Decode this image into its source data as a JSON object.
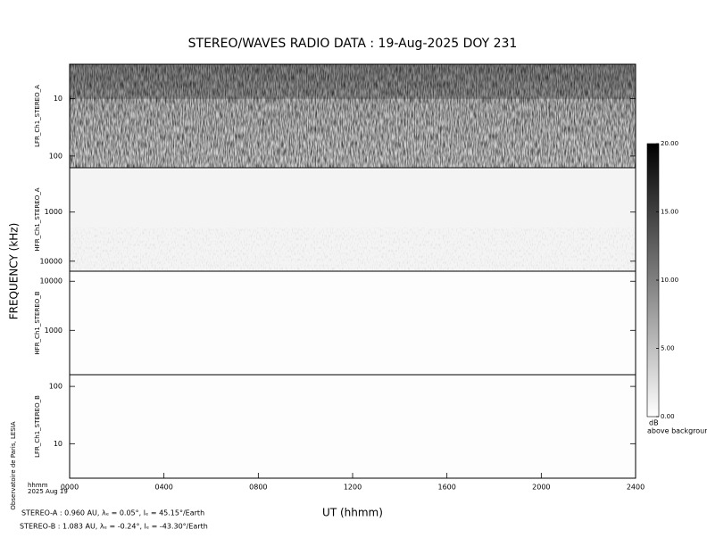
{
  "chart_data": {
    "type": "spectrogram",
    "title": "STEREO/WAVES  RADIO  DATA : 19-Aug-2025  DOY 231",
    "ylabel": "FREQUENCY (kHz)",
    "xlabel": "UT (hhmm)",
    "xlim": [
      0,
      24
    ],
    "xticks": [
      {
        "value": 0,
        "label": "0000"
      },
      {
        "value": 4,
        "label": "0400"
      },
      {
        "value": 8,
        "label": "0800"
      },
      {
        "value": 12,
        "label": "1200"
      },
      {
        "value": 16,
        "label": "1600"
      },
      {
        "value": 20,
        "label": "2000"
      },
      {
        "value": 24,
        "label": "2400"
      }
    ],
    "log_scale": true,
    "panels": [
      {
        "name": "LFR_Ch1_STEREO_A",
        "ylim": [
          2.5,
          160
        ],
        "yticks": [
          10,
          100
        ],
        "inverted": true
      },
      {
        "name": "HFR_Ch1_STEREO_A",
        "ylim": [
          125,
          16000
        ],
        "yticks": [
          1000,
          10000
        ],
        "inverted": true
      },
      {
        "name": "HFR_Ch1_STEREO_B",
        "ylim": [
          125,
          16000
        ],
        "yticks": [
          1000,
          10000
        ],
        "inverted": false
      },
      {
        "name": "LFR_Ch1_STEREO_B",
        "ylim": [
          2.5,
          160
        ],
        "yticks": [
          10,
          100
        ],
        "inverted": false
      }
    ],
    "colorbar": {
      "clim": [
        0,
        20
      ],
      "ticks": [
        {
          "value": 20,
          "label": "20.00"
        },
        {
          "value": 15,
          "label": "15.00"
        },
        {
          "value": 10,
          "label": "10.00"
        },
        {
          "value": 5,
          "label": "5.00"
        },
        {
          "value": 0,
          "label": "0.00"
        }
      ],
      "unit": "dB",
      "caption": "above background"
    },
    "time_label": "hhmm",
    "date_label": "2025 Aug 19",
    "credit": "Observatoire de Paris, LESIA",
    "footnotes": [
      "STEREO-A : 0.960 AU, λₑ = 0.05°, lₑ = 45.15°/Earth",
      "STEREO-B : 1.083 AU, λₑ = -0.24°, lₑ = -43.30°/Earth"
    ]
  }
}
